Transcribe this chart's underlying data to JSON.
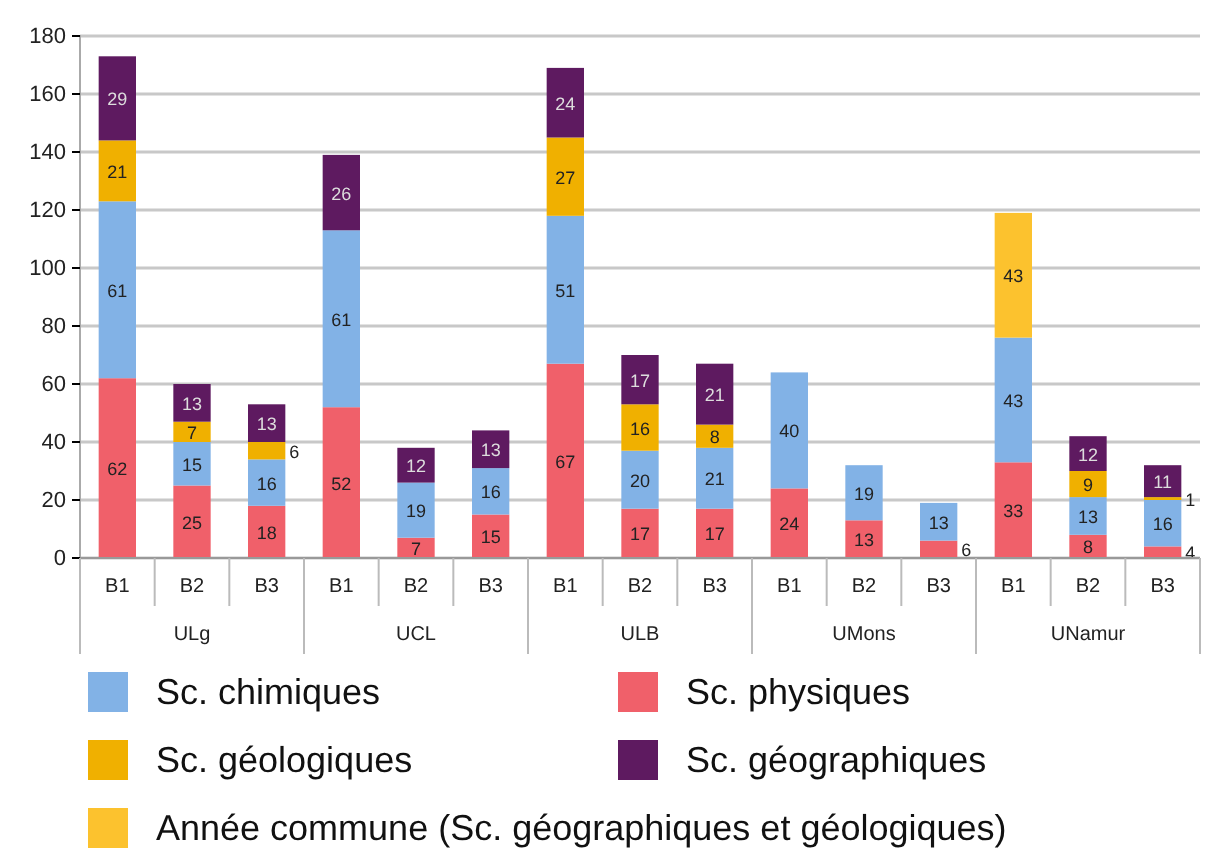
{
  "chart_data": {
    "type": "bar",
    "stacked": true,
    "categories": [
      "B1",
      "B2",
      "B3",
      "B1",
      "B2",
      "B3",
      "B1",
      "B2",
      "B3",
      "B1",
      "B2",
      "B3",
      "B1",
      "B2",
      "B3"
    ],
    "annotations": [
      "ULg",
      "UCL",
      "ULB",
      "UMons",
      "UNamur"
    ],
    "series": [
      {
        "name": "Sc. physiques",
        "color": "#f0606a",
        "values": [
          62,
          25,
          18,
          52,
          7,
          15,
          67,
          17,
          17,
          24,
          13,
          6,
          33,
          8,
          4
        ]
      },
      {
        "name": "Sc. chimiques",
        "color": "#82b2e6",
        "values": [
          61,
          15,
          16,
          61,
          19,
          16,
          51,
          20,
          21,
          40,
          19,
          13,
          43,
          13,
          16
        ]
      },
      {
        "name": "Sc. géologiques",
        "color": "#f0b000",
        "values": [
          21,
          7,
          6,
          null,
          null,
          null,
          27,
          16,
          8,
          null,
          null,
          null,
          null,
          9,
          1
        ]
      },
      {
        "name": "Année commune (Sc. géographiques et géologiques)",
        "color": "#fcc22e",
        "values": [
          null,
          null,
          null,
          null,
          null,
          null,
          null,
          null,
          null,
          null,
          null,
          null,
          43,
          null,
          null
        ]
      },
      {
        "name": "Sc. géographiques",
        "color": "#5e1a60",
        "values": [
          29,
          13,
          13,
          26,
          12,
          13,
          24,
          17,
          21,
          null,
          null,
          null,
          null,
          12,
          11
        ]
      }
    ],
    "ylim": [
      0,
      180
    ],
    "yticks": [
      0,
      20,
      40,
      60,
      80,
      100,
      120,
      140,
      160,
      180
    ],
    "grid": "y",
    "data_labels": true,
    "legend": "bottom"
  }
}
